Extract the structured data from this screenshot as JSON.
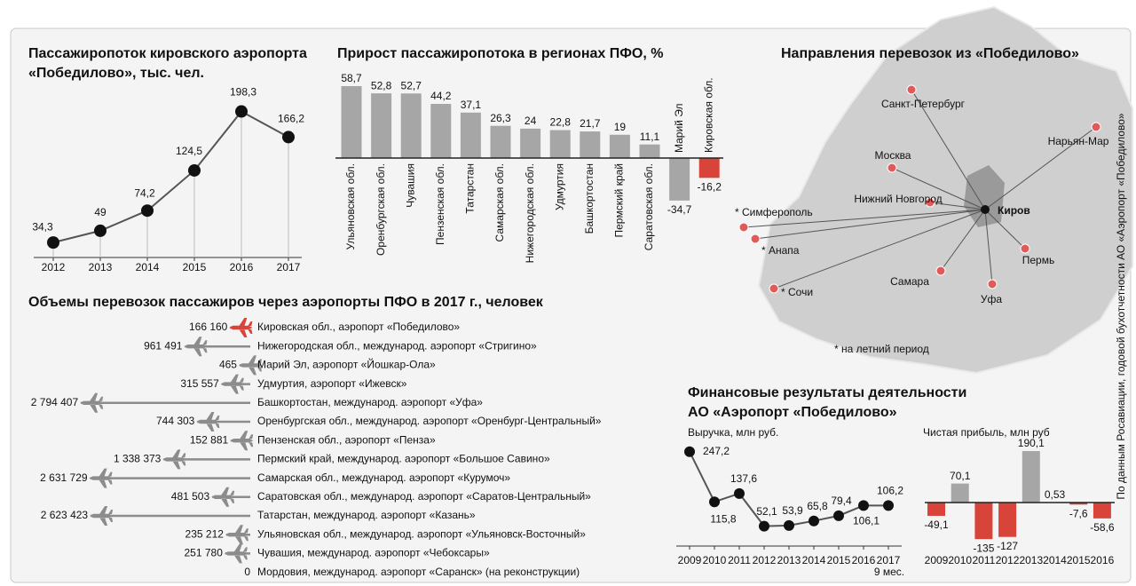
{
  "chart_data": [
    {
      "type": "line",
      "title": "Пассажиропоток кировского аэропорта «Победилово», тыс. чел.",
      "categories": [
        "2012",
        "2013",
        "2014",
        "2015",
        "2016",
        "2017"
      ],
      "values": [
        34.3,
        49,
        74.2,
        124.5,
        198.3,
        166.2
      ],
      "value_labels": [
        "34,3",
        "49",
        "74,2",
        "124,5",
        "198,3",
        "166,2"
      ],
      "color": "#555555"
    },
    {
      "type": "bar",
      "title": "Прирост пассажиропотока в регионах ПФО, %",
      "categories": [
        "Ульяновская обл.",
        "Оренбургская обл.",
        "Чувашия",
        "Пензенская обл.",
        "Татарстан",
        "Самарская обл.",
        "Нижегородская обл.",
        "Удмуртия",
        "Башкортостан",
        "Пермский край",
        "Саратовская обл.",
        "Марий Эл",
        "Кировская обл."
      ],
      "values": [
        58.7,
        52.8,
        52.7,
        44.2,
        37.1,
        26.3,
        24,
        22.8,
        21.7,
        19,
        11.1,
        -34.7,
        -16.2
      ],
      "value_labels": [
        "58,7",
        "52,8",
        "52,7",
        "44,2",
        "37,1",
        "26,3",
        "24",
        "22,8",
        "21,7",
        "19",
        "11,1",
        "-34,7",
        "-16,2"
      ],
      "colors": [
        "#a6a6a6",
        "#a6a6a6",
        "#a6a6a6",
        "#a6a6a6",
        "#a6a6a6",
        "#a6a6a6",
        "#a6a6a6",
        "#a6a6a6",
        "#a6a6a6",
        "#a6a6a6",
        "#a6a6a6",
        "#a6a6a6",
        "#d9443a"
      ]
    },
    {
      "type": "hbar",
      "title": "Объемы перевозок пассажиров через аэропорты ПФО в 2017 г., человек",
      "categories": [
        "Кировская обл., аэропорт «Победилово»",
        "Нижегородская обл., международ. аэропорт «Стригино»",
        "Марий Эл, аэропорт «Йошкар-Ола»",
        "Удмуртия, аэропорт «Ижевск»",
        "Башкортостан, международ. аэропорт «Уфа»",
        "Оренбургская обл., международ. аэропорт «Оренбург-Центральный»",
        "Пензенская обл., аэропорт «Пенза»",
        "Пермский край, международ. аэропорт «Большое Савино»",
        "Самарская обл., международ. аэропорт «Курумоч»",
        "Саратовская обл., международ. аэропорт «Саратов-Центральный»",
        "Татарстан, международ. аэропорт «Казань»",
        "Ульяновская обл., международ. аэропорт «Ульяновск-Восточный»",
        "Чувашия, международ. аэропорт «Чебоксары»",
        "Мордовия, международ. аэропорт «Саранск» (на реконструкции)"
      ],
      "values": [
        166160,
        961491,
        465,
        315557,
        2794407,
        744303,
        152881,
        1338373,
        2631729,
        481503,
        2623423,
        235212,
        251780,
        0
      ],
      "value_labels": [
        "166 160",
        "961 491",
        "465",
        "315 557",
        "2 794 407",
        "744 303",
        "152 881",
        "1 338 373",
        "2 631 729",
        "481 503",
        "2 623 423",
        "235 212",
        "251 780",
        "0"
      ],
      "colors": [
        "#d9443a",
        "#8c8c8c",
        "#8c8c8c",
        "#8c8c8c",
        "#8c8c8c",
        "#8c8c8c",
        "#8c8c8c",
        "#8c8c8c",
        "#8c8c8c",
        "#8c8c8c",
        "#8c8c8c",
        "#8c8c8c",
        "#8c8c8c",
        "#8c8c8c"
      ]
    },
    {
      "type": "line",
      "subtitle": "Выручка,  млн руб.",
      "categories": [
        "2009",
        "2010",
        "2011",
        "2012",
        "2013",
        "2014",
        "2015",
        "2016",
        "2017"
      ],
      "values": [
        247.2,
        115.8,
        137.6,
        52.1,
        53.9,
        65.8,
        79.4,
        106.1,
        106.2
      ],
      "value_labels": [
        "247,2",
        "115,8",
        "137,6",
        "52,1",
        "53,9",
        "65,8",
        "79,4",
        "106,1",
        "106,2"
      ],
      "annotation": "9 мес.",
      "color": "#555555"
    },
    {
      "type": "bar",
      "subtitle": "Чистая прибыль, млн руб",
      "categories": [
        "2009",
        "2010",
        "2011",
        "2012",
        "2013",
        "2014",
        "2015",
        "2016"
      ],
      "values": [
        -49.1,
        70.1,
        -135,
        -127,
        190.1,
        0.53,
        -7.6,
        -58.6
      ],
      "value_labels": [
        "-49,1",
        "70,1",
        "-135",
        "-127",
        "190,1",
        "0,53",
        "-7,6",
        "-58,6"
      ],
      "colors": [
        "#d9443a",
        "#a6a6a6",
        "#d9443a",
        "#d9443a",
        "#a6a6a6",
        "#a6a6a6",
        "#d9443a",
        "#d9443a"
      ]
    }
  ],
  "map": {
    "title": "Направления перевозок из «Победилово»",
    "hub": "Киров",
    "cities": [
      "Санкт-Петербург",
      "Нарьян-Мар",
      "Москва",
      "Нижний Новгород",
      "* Симферополь",
      "* Анапа",
      "* Сочи",
      "Самара",
      "Уфа",
      "Пермь"
    ],
    "note": "* на летний период"
  },
  "finance_title": "Финансовые результаты деятельности АО «Аэропорт «Победилово»",
  "source": "По данным Росавиации, годовой бухотчетности АО «Аэропорт «Победилово»"
}
